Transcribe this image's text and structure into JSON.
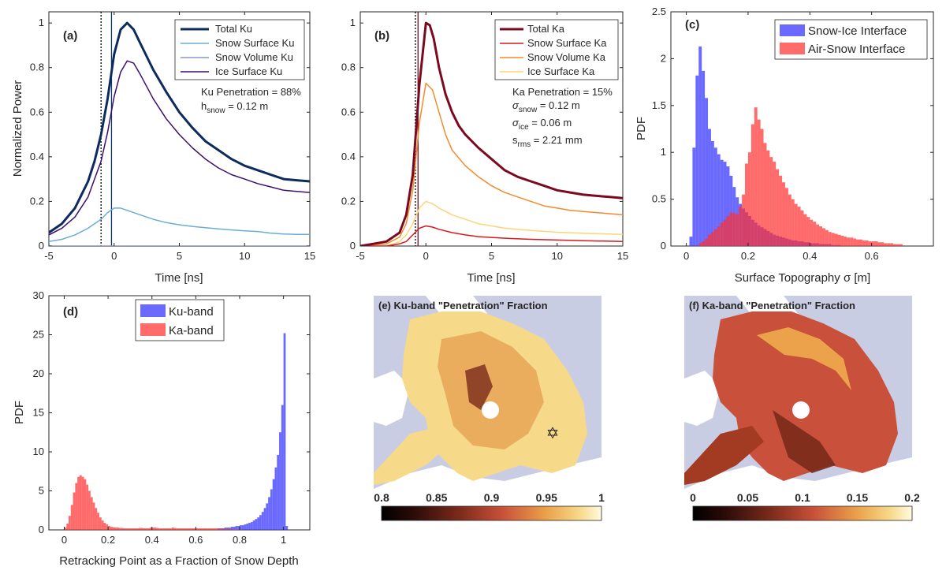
{
  "figure": {
    "panels": {
      "a": {
        "letter": "(a)",
        "xlabel": "Time [ns]",
        "ylabel": "Normalized Power",
        "legend": [
          "Total Ku",
          "Snow Surface Ku",
          "Snow Volume Ku",
          "Ice Surface Ku"
        ],
        "annotation": {
          "line1": "Ku Penetration = 88%",
          "h_main": "h",
          "h_sub": "snow",
          "h_rest": " = 0.12 m"
        }
      },
      "b": {
        "letter": "(b)",
        "xlabel": "Time [ns]",
        "legend": [
          "Total Ka",
          "Snow Surface Ka",
          "Snow Volume Ka",
          "Ice Surface Ka"
        ],
        "annotation": {
          "line1": "Ka Penetration = 15%",
          "s1_main": "σ",
          "s1_sub": "snow",
          "s1_rest": " = 0.12 m",
          "s2_main": "σ",
          "s2_sub": "ice",
          "s2_rest": " = 0.06 m",
          "s3_main": "s",
          "s3_sub": "rms",
          "s3_rest": " = 2.21 mm"
        }
      },
      "c": {
        "letter": "(c)",
        "xlabel": "Surface Topography σ [m]",
        "ylabel": "PDF",
        "legend": [
          "Snow-Ice Interface",
          "Air-Snow Interface"
        ]
      },
      "d": {
        "letter": "(d)",
        "xlabel": "Retracking Point as a Fraction of Snow Depth",
        "ylabel": "PDF",
        "legend": [
          "Ku-band",
          "Ka-band"
        ]
      },
      "e": {
        "title": "(e) Ku-band \"Penetration\" Fraction",
        "colorbar_ticks": [
          "0.8",
          "0.85",
          "0.9",
          "0.95",
          "1"
        ]
      },
      "f": {
        "title": "(f) Ka-band \"Penetration\" Fraction",
        "colorbar_ticks": [
          "0",
          "0.05",
          "0.1",
          "0.15",
          "0.2"
        ]
      }
    }
  },
  "chart_data": [
    {
      "panel": "a",
      "type": "line",
      "xlim": [
        -5,
        15
      ],
      "ylim": [
        0,
        1.05
      ],
      "xticks": [
        -5,
        0,
        5,
        10,
        15
      ],
      "yticks": [
        0,
        0.2,
        0.4,
        0.6,
        0.8,
        1
      ],
      "vlines": [
        {
          "x": -1.0,
          "style": "dotted",
          "color": "#000000"
        },
        {
          "x": -0.2,
          "style": "solid",
          "color": "#0d3b66"
        }
      ],
      "series": [
        {
          "name": "Total Ku",
          "color": "#0d2b5e",
          "width": 3,
          "x": [
            -5,
            -4,
            -3,
            -2,
            -1.5,
            -1,
            -0.5,
            0,
            0.5,
            1,
            1.5,
            2,
            3,
            4,
            5,
            6,
            7,
            8,
            9,
            10,
            11,
            12,
            13,
            14,
            15
          ],
          "y": [
            0.06,
            0.1,
            0.17,
            0.29,
            0.38,
            0.5,
            0.66,
            0.86,
            0.97,
            1.0,
            0.97,
            0.91,
            0.79,
            0.69,
            0.6,
            0.53,
            0.47,
            0.43,
            0.39,
            0.36,
            0.34,
            0.32,
            0.3,
            0.295,
            0.29
          ]
        },
        {
          "name": "Snow Surface Ku",
          "color": "#6aaed6",
          "width": 1.5,
          "x": [
            -5,
            -4,
            -3,
            -2,
            -1,
            -0.5,
            0,
            0.5,
            1,
            2,
            3,
            4,
            5,
            6,
            7,
            8,
            9,
            10,
            11,
            12,
            13,
            14,
            15
          ],
          "y": [
            0.02,
            0.03,
            0.05,
            0.08,
            0.12,
            0.15,
            0.17,
            0.17,
            0.16,
            0.14,
            0.12,
            0.105,
            0.095,
            0.088,
            0.082,
            0.077,
            0.072,
            0.068,
            0.065,
            0.058,
            0.054,
            0.052,
            0.052
          ]
        },
        {
          "name": "Snow Volume Ku",
          "color": "#8c96c6",
          "width": 1.5,
          "x": [
            -5,
            15
          ],
          "y": [
            0.0,
            0.0
          ]
        },
        {
          "name": "Ice Surface Ku",
          "color": "#3b0f70",
          "width": 1.5,
          "x": [
            -5,
            -4,
            -3,
            -2,
            -1.5,
            -1,
            -0.5,
            0,
            0.5,
            1,
            1.5,
            2,
            3,
            4,
            5,
            6,
            7,
            8,
            9,
            10,
            11,
            12,
            13,
            14,
            15
          ],
          "y": [
            0.05,
            0.08,
            0.13,
            0.22,
            0.3,
            0.38,
            0.51,
            0.67,
            0.78,
            0.83,
            0.82,
            0.77,
            0.66,
            0.57,
            0.5,
            0.44,
            0.39,
            0.35,
            0.32,
            0.3,
            0.28,
            0.265,
            0.25,
            0.245,
            0.24
          ]
        }
      ]
    },
    {
      "panel": "b",
      "type": "line",
      "xlim": [
        -5,
        15
      ],
      "ylim": [
        0,
        1.05
      ],
      "xticks": [
        -5,
        0,
        5,
        10,
        15
      ],
      "yticks": [
        0,
        0.2,
        0.4,
        0.6,
        0.8,
        1
      ],
      "vlines": [
        {
          "x": -0.8,
          "style": "dotted",
          "color": "#000000"
        },
        {
          "x": -0.6,
          "style": "solid",
          "color": "#7a0a1f"
        }
      ],
      "series": [
        {
          "name": "Total Ka",
          "color": "#7a0a1f",
          "width": 3,
          "x": [
            -5,
            -4,
            -3,
            -2,
            -1.5,
            -1,
            -0.5,
            0,
            0.3,
            0.6,
            1,
            1.5,
            2,
            2.5,
            3,
            4,
            5,
            6,
            7,
            8,
            9,
            10,
            11,
            12,
            13,
            14,
            15
          ],
          "y": [
            0.0,
            0.01,
            0.02,
            0.06,
            0.14,
            0.32,
            0.72,
            1.0,
            0.99,
            0.93,
            0.8,
            0.68,
            0.6,
            0.54,
            0.5,
            0.44,
            0.39,
            0.34,
            0.31,
            0.29,
            0.27,
            0.25,
            0.24,
            0.23,
            0.225,
            0.22,
            0.215
          ]
        },
        {
          "name": "Snow Surface Ka",
          "color": "#d7191c",
          "width": 1.5,
          "x": [
            -5,
            -3,
            -2,
            -1.5,
            -1,
            -0.5,
            0,
            0.5,
            1,
            2,
            3,
            4,
            6,
            8,
            10,
            12,
            15
          ],
          "y": [
            0.0,
            0.0,
            0.01,
            0.02,
            0.05,
            0.08,
            0.09,
            0.085,
            0.075,
            0.06,
            0.05,
            0.042,
            0.035,
            0.03,
            0.027,
            0.024,
            0.02
          ]
        },
        {
          "name": "Snow Volume Ka",
          "color": "#f58a2c",
          "width": 1.5,
          "x": [
            -5,
            -3,
            -2,
            -1.5,
            -1,
            -0.5,
            0,
            0.5,
            1,
            1.5,
            2,
            3,
            4,
            5,
            6,
            7,
            8,
            9,
            10,
            11,
            12,
            13,
            14,
            15
          ],
          "y": [
            0.0,
            0.01,
            0.04,
            0.1,
            0.25,
            0.55,
            0.73,
            0.7,
            0.6,
            0.5,
            0.43,
            0.36,
            0.31,
            0.27,
            0.24,
            0.22,
            0.2,
            0.18,
            0.17,
            0.16,
            0.155,
            0.15,
            0.145,
            0.14
          ]
        },
        {
          "name": "Ice Surface Ka",
          "color": "#fdd57a",
          "width": 1.5,
          "x": [
            -5,
            -3,
            -2,
            -1.5,
            -1,
            -0.5,
            0,
            0.5,
            1,
            2,
            3,
            4,
            5,
            6,
            8,
            10,
            12,
            15
          ],
          "y": [
            0.0,
            0.0,
            0.02,
            0.05,
            0.1,
            0.17,
            0.2,
            0.19,
            0.17,
            0.14,
            0.12,
            0.1,
            0.09,
            0.08,
            0.07,
            0.062,
            0.057,
            0.052
          ]
        }
      ]
    },
    {
      "panel": "c",
      "type": "bar",
      "xlim": [
        -0.05,
        0.8
      ],
      "ylim": [
        0,
        2.5
      ],
      "xticks": [
        0,
        0.2,
        0.4,
        0.6
      ],
      "yticks": [
        0,
        0.5,
        1,
        1.5,
        2,
        2.5
      ],
      "bin_width": 0.01,
      "series": [
        {
          "name": "Snow-Ice Interface",
          "color": "#4040ff",
          "opacity": 0.78,
          "x_start": 0.0,
          "values": [
            0.0,
            0.1,
            1.05,
            1.82,
            2.13,
            1.87,
            1.58,
            1.25,
            1.12,
            1.05,
            0.98,
            0.92,
            0.9,
            0.85,
            0.75,
            0.63,
            0.52,
            0.45,
            0.4,
            0.36,
            0.32,
            0.28,
            0.25,
            0.22,
            0.2,
            0.18,
            0.16,
            0.14,
            0.12,
            0.11,
            0.1,
            0.09,
            0.08,
            0.07,
            0.06,
            0.06,
            0.05,
            0.05,
            0.04,
            0.04,
            0.03,
            0.03,
            0.03,
            0.02,
            0.02,
            0.02,
            0.02,
            0.01,
            0.01,
            0.01
          ]
        },
        {
          "name": "Air-Snow Interface",
          "color": "#ff3030",
          "opacity": 0.72,
          "x_start": 0.0,
          "values": [
            0.0,
            0.0,
            0.0,
            0.0,
            0.03,
            0.05,
            0.08,
            0.12,
            0.15,
            0.18,
            0.21,
            0.25,
            0.28,
            0.32,
            0.36,
            0.35,
            0.34,
            0.42,
            0.55,
            0.88,
            1.0,
            1.3,
            1.48,
            1.35,
            1.25,
            1.1,
            1.02,
            0.95,
            0.9,
            0.82,
            0.75,
            0.68,
            0.62,
            0.55,
            0.5,
            0.45,
            0.42,
            0.38,
            0.34,
            0.31,
            0.28,
            0.26,
            0.23,
            0.21,
            0.19,
            0.17,
            0.15,
            0.14,
            0.13,
            0.12,
            0.11,
            0.1,
            0.09,
            0.09,
            0.08,
            0.07,
            0.07,
            0.06,
            0.06,
            0.05,
            0.05,
            0.05,
            0.04,
            0.04,
            0.03,
            0.03,
            0.03,
            0.02,
            0.02,
            0.02
          ]
        }
      ]
    },
    {
      "panel": "d",
      "type": "bar",
      "xlim": [
        -0.07,
        1.12
      ],
      "ylim": [
        0,
        30
      ],
      "xticks": [
        0,
        0.2,
        0.4,
        0.6,
        0.8,
        1
      ],
      "yticks": [
        0,
        5,
        10,
        15,
        20,
        25,
        30
      ],
      "bin_width": 0.01,
      "series": [
        {
          "name": "Ku-band",
          "color": "#4040ff",
          "opacity": 0.78,
          "x_start": 0.7,
          "values": [
            0.2,
            0.2,
            0.2,
            0.3,
            0.3,
            0.3,
            0.4,
            0.4,
            0.5,
            0.5,
            0.6,
            0.6,
            0.7,
            0.8,
            0.9,
            1.0,
            1.2,
            1.4,
            1.6,
            1.9,
            2.3,
            2.8,
            3.4,
            4.2,
            5.2,
            6.5,
            8.0,
            9.6,
            12.5,
            16.0,
            25.2,
            0.5
          ]
        },
        {
          "name": "Ka-band",
          "color": "#ff3030",
          "opacity": 0.72,
          "x_start": 0.0,
          "values": [
            0.3,
            0.8,
            1.8,
            3.2,
            4.8,
            6.0,
            6.8,
            7.0,
            6.8,
            6.5,
            5.8,
            5.0,
            4.2,
            3.5,
            2.8,
            2.2,
            1.6,
            1.2,
            0.9,
            0.7,
            0.5,
            0.4,
            0.35,
            0.3,
            0.3,
            0.25,
            0.25,
            0.2,
            0.2,
            0.2,
            0.2,
            0.2,
            0.2,
            0.2,
            0.25,
            0.25,
            0.2,
            0.2,
            0.2,
            0.3,
            0.3,
            0.3,
            0.25,
            0.2,
            0.2,
            0.2,
            0.2,
            0.2,
            0.2,
            0.3,
            0.25,
            0.2,
            0.2,
            0.2,
            0.2,
            0.2,
            0.2,
            0.2,
            0.2,
            0.2,
            0.2,
            0.2,
            0.2,
            0.2,
            0.2,
            0.2,
            0.2,
            0.2,
            0.2,
            0.2,
            0.15,
            0.15,
            0.15,
            0.1,
            0.1,
            0.1,
            0.1,
            0.05,
            0.05,
            0.05,
            0.05
          ]
        }
      ]
    },
    {
      "panel": "e",
      "type": "heatmap",
      "colorbar_range": [
        0.8,
        1.0
      ],
      "colorbar_ticks": [
        0.8,
        0.85,
        0.9,
        0.95,
        1.0
      ]
    },
    {
      "panel": "f",
      "type": "heatmap",
      "colorbar_range": [
        0,
        0.2
      ],
      "colorbar_ticks": [
        0,
        0.05,
        0.1,
        0.15,
        0.2
      ]
    }
  ]
}
